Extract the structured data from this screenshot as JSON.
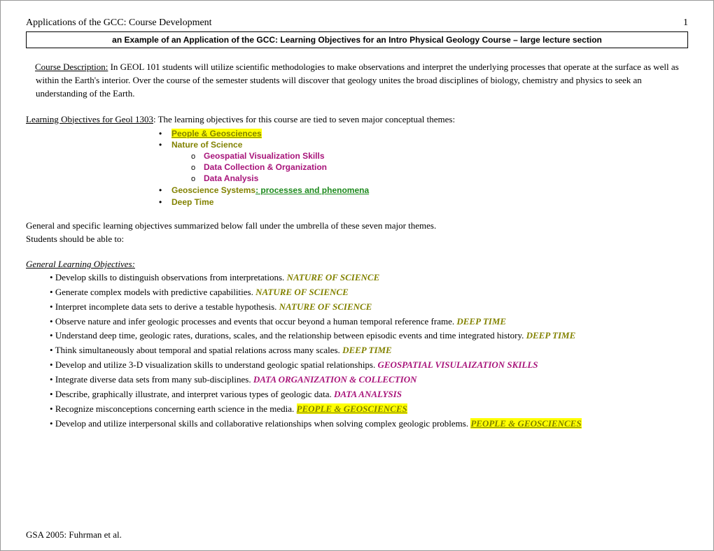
{
  "header": {
    "left": "Applications of the GCC: Course Development",
    "page": "1"
  },
  "titleBox": "an Example of an Application of the GCC: Learning Objectives for an Intro Physical Geology Course – large lecture section",
  "courseDesc": {
    "label": "Course Description:",
    "text": " In GEOL 101 students will utilize scientific methodologies to make observations and interpret the underlying processes that operate at the surface as well as within the Earth's interior. Over the course of the semester students will discover that geology unites the broad disciplines of biology, chemistry and physics to seek an understanding of the Earth."
  },
  "learningObjIntro": {
    "label": "Learning Objectives for Geol 1303",
    "text": ": The learning objectives for this course are tied to seven major conceptual themes:"
  },
  "themes": {
    "t1": "People & Geosciences",
    "t2": "Nature of Science",
    "t2a": "Geospatial Visualization Skills",
    "t2b": "Data Collection & Organization",
    "t2c": "Data Analysis",
    "t3a": "Geoscience Systems",
    "t3b": ": processes and phenomena",
    "t4": "Deep Time"
  },
  "midText": {
    "line1": "General and specific learning objectives summarized below fall under the umbrella of these seven major themes.",
    "line2": "Students should be able to:"
  },
  "gloHeader": "General Learning Objectives: ",
  "glo": [
    {
      "text": "Develop skills to distinguish observations from interpretations. ",
      "tag": "NATURE OF SCIENCE",
      "tagClass": "tag-olive"
    },
    {
      "text": "Generate complex models with predictive capabilities. ",
      "tag": "NATURE OF SCIENCE",
      "tagClass": "tag-olive"
    },
    {
      "text": "Interpret incomplete data sets to derive a testable hypothesis. ",
      "tag": "NATURE OF SCIENCE",
      "tagClass": "tag-olive"
    },
    {
      "text": "Observe nature and infer geologic processes and events that occur beyond a human temporal reference frame. ",
      "tag": "DEEP TIME",
      "tagClass": "tag-olive"
    },
    {
      "text": "Understand deep time, geologic rates, durations, scales, and the relationship between episodic events and time integrated history. ",
      "tag": "DEEP TIME",
      "tagClass": "tag-olive"
    },
    {
      "text": "Think simultaneously about temporal and spatial relations across many scales. ",
      "tag": "DEEP TIME",
      "tagClass": "tag-olive"
    },
    {
      "text": "Develop and utilize 3-D visualization skills to understand geologic spatial relationships. ",
      "tag": "GEOSPATIAL VISULAIZATION SKILLS",
      "tagClass": "tag-magenta"
    },
    {
      "text": "Integrate diverse data sets from many sub-disciplines. ",
      "tag": "DATA ORGANIZATION & COLLECTION",
      "tagClass": "tag-magenta"
    },
    {
      "text": "Describe, graphically illustrate, and interpret various types of geologic data. ",
      "tag": "DATA ANALYSIS",
      "tagClass": "tag-magenta"
    },
    {
      "text": "Recognize misconceptions concerning earth science in the media. ",
      "tag": "PEOPLE & GEOSCIENCES",
      "tagClass": "tag-olive-hl"
    },
    {
      "text": "Develop and utilize interpersonal skills and collaborative relationships when solving complex geologic problems. ",
      "tag": "PEOPLE & GEOSCIENCES",
      "tagClass": "tag-olive-hl"
    }
  ],
  "footer": "GSA 2005: Fuhrman et al."
}
